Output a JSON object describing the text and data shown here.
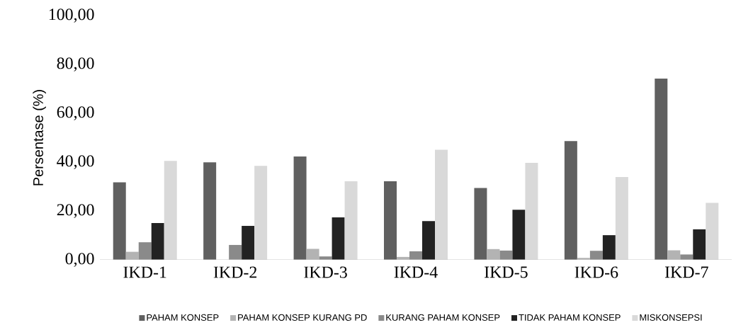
{
  "chart_data": {
    "type": "bar",
    "ylabel": "Persentase (%)",
    "categories": [
      "IKD-1",
      "IKD-2",
      "IKD-3",
      "IKD-4",
      "IKD-5",
      "IKD-6",
      "IKD-7"
    ],
    "series": [
      {
        "name": "PAHAM KONSEP",
        "color": "#606060",
        "values": [
          31.7,
          39.9,
          42.3,
          32.2,
          29.4,
          48.6,
          74.2
        ]
      },
      {
        "name": "PAHAM KONSEP KURANG PD",
        "color": "#b3b3b3",
        "values": [
          3.3,
          0,
          4.5,
          1.2,
          4.4,
          0.8,
          3.9
        ]
      },
      {
        "name": "KURANG PAHAM KONSEP",
        "color": "#8a8a8a",
        "values": [
          7.2,
          6.1,
          1.4,
          3.5,
          3.8,
          3.7,
          2.2
        ]
      },
      {
        "name": "TIDAK PAHAM KONSEP",
        "color": "#222222",
        "values": [
          15.1,
          13.9,
          17.4,
          15.9,
          20.5,
          10.1,
          12.5
        ]
      },
      {
        "name": "MISKONSEPSI",
        "color": "#d9d9d9",
        "values": [
          40.5,
          38.5,
          32.2,
          45.1,
          39.7,
          33.9,
          23.3
        ]
      }
    ],
    "ylim": [
      0,
      100
    ],
    "yticks": [
      {
        "value": 0,
        "label": "0,00"
      },
      {
        "value": 20,
        "label": "20,00"
      },
      {
        "value": 40,
        "label": "40,00"
      },
      {
        "value": 60,
        "label": "60,00"
      },
      {
        "value": 80,
        "label": "80,00"
      },
      {
        "value": 100,
        "label": "100,00"
      }
    ],
    "legend": "bottom"
  }
}
